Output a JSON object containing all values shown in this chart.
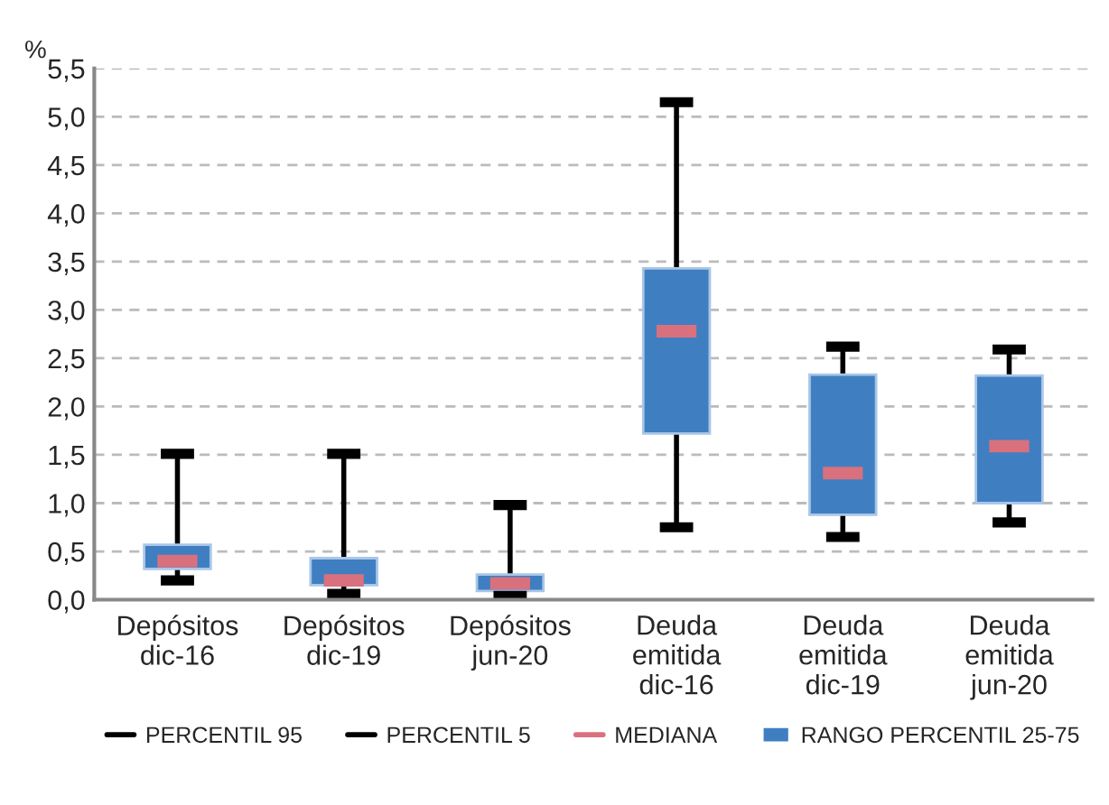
{
  "chart_data": {
    "type": "box",
    "ylabel": "%",
    "categories": [
      "Depósitos\ndic-16",
      "Depósitos\ndic-19",
      "Depósitos\njun-20",
      "Deuda\nemitida\ndic-16",
      "Deuda\nemitida\ndic-19",
      "Deuda\nemitida\njun-20"
    ],
    "series": [
      {
        "name": "RANGO PERCENTIL 25-75",
        "color": "#3f7fc1",
        "boxes": [
          {
            "low": 0.2,
            "q1": 0.32,
            "median": 0.4,
            "q3": 0.57,
            "high": 1.51
          },
          {
            "low": 0.06,
            "q1": 0.15,
            "median": 0.2,
            "q3": 0.43,
            "high": 1.51
          },
          {
            "low": 0.04,
            "q1": 0.09,
            "median": 0.17,
            "q3": 0.26,
            "high": 0.98
          },
          {
            "low": 0.75,
            "q1": 1.72,
            "median": 2.78,
            "q3": 3.43,
            "high": 5.15
          },
          {
            "low": 0.65,
            "q1": 0.88,
            "median": 1.31,
            "q3": 2.33,
            "high": 2.62
          },
          {
            "low": 0.8,
            "q1": 1.0,
            "median": 1.59,
            "q3": 2.32,
            "high": 2.59
          }
        ]
      }
    ],
    "annotations": [
      "PERCENTIL 95",
      "PERCENTIL 5",
      "MEDIANA"
    ],
    "ylim": [
      0,
      5.5
    ],
    "yticks": [
      {
        "value": 0,
        "label": "0,0"
      },
      {
        "value": 0.5,
        "label": "0,5"
      },
      {
        "value": 1,
        "label": "1,0"
      },
      {
        "value": 1.5,
        "label": "1,5"
      },
      {
        "value": 2,
        "label": "2,0"
      },
      {
        "value": 2.5,
        "label": "2,5"
      },
      {
        "value": 3,
        "label": "3,0"
      },
      {
        "value": 3.5,
        "label": "3,5"
      },
      {
        "value": 4,
        "label": "4,0"
      },
      {
        "value": 4.5,
        "label": "4,5"
      },
      {
        "value": 5,
        "label": "5,0"
      },
      {
        "value": 5.5,
        "label": "5,5"
      }
    ],
    "grid": "y",
    "legend": "bottom"
  }
}
